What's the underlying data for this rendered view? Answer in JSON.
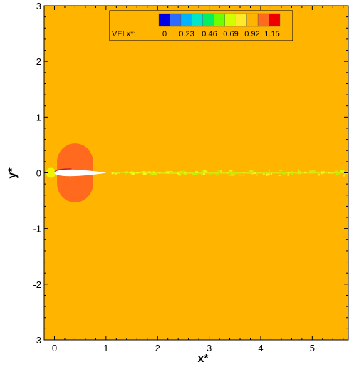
{
  "chart_data": {
    "type": "heatmap",
    "title": "",
    "xlabel": "x*",
    "ylabel": "y*",
    "xlim": [
      -0.2,
      5.7
    ],
    "ylim": [
      -3,
      3
    ],
    "x_ticks": [
      0,
      1,
      2,
      3,
      4,
      5
    ],
    "y_ticks": [
      3,
      2,
      1,
      0,
      -1,
      -2,
      -3
    ],
    "legend": {
      "variable": "VELx*:",
      "placement": "top",
      "levels": [
        0,
        0.23,
        0.46,
        0.69,
        0.92,
        1.15
      ],
      "colors": [
        "#0000e6",
        "#2c6cff",
        "#00b4ff",
        "#00e6c8",
        "#00f060",
        "#6eff00",
        "#d0ff00",
        "#ffea2a",
        "#ffb400",
        "#ff6a1e",
        "#ee0000"
      ]
    },
    "field": {
      "background_value": 0.95,
      "background_color": "#ffb400",
      "high_velocity_region": {
        "center": [
          0.4,
          0
        ],
        "half_width": 0.35,
        "half_height": 0.53,
        "value": 1.08,
        "color": "#ff6a1e"
      },
      "stagnation_point": {
        "center": [
          -0.07,
          0
        ],
        "value": 0.85,
        "color": "#f2f200"
      },
      "airfoil": {
        "leading_edge": 0,
        "trailing_edge": 1,
        "fill": "#ffffff"
      },
      "wake": {
        "start": 1,
        "end": 5.7,
        "color": "#d8ea10"
      }
    }
  }
}
